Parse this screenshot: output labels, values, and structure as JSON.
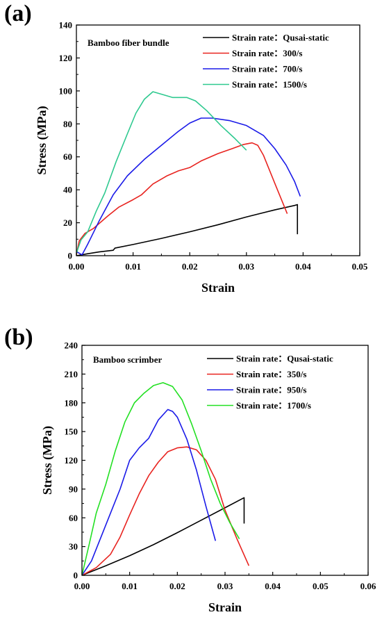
{
  "chart_data": [
    {
      "type": "line",
      "panel_label": "(a)",
      "annotation": "Bamboo fiber bundle",
      "xlabel": "Strain",
      "ylabel": "Stress (MPa)",
      "xlim": [
        0,
        0.05
      ],
      "ylim": [
        0,
        140
      ],
      "xticks": [
        "0.00",
        "0.01",
        "0.02",
        "0.03",
        "0.04",
        "0.05"
      ],
      "xtick_values": [
        0,
        0.01,
        0.02,
        0.03,
        0.04,
        0.05
      ],
      "yticks": [
        "0",
        "20",
        "40",
        "60",
        "80",
        "100",
        "120",
        "140"
      ],
      "ytick_values": [
        0,
        20,
        40,
        60,
        80,
        100,
        120,
        140
      ],
      "legend_position": "top-right",
      "series": [
        {
          "name": "Strain rate：Qusai-static",
          "color": "#000000",
          "points": [
            [
              0,
              0
            ],
            [
              0.002,
              1.2
            ],
            [
              0.004,
              2.3
            ],
            [
              0.0065,
              3.3
            ],
            [
              0.0068,
              4.6
            ],
            [
              0.01,
              6.8
            ],
            [
              0.015,
              10.5
            ],
            [
              0.02,
              14.5
            ],
            [
              0.025,
              18.8
            ],
            [
              0.03,
              23.5
            ],
            [
              0.035,
              27.8
            ],
            [
              0.0385,
              30.5
            ],
            [
              0.039,
              31
            ],
            [
              0.039,
              13
            ]
          ]
        },
        {
          "name": "Strain rate：300/s",
          "color": "#e8231f",
          "points": [
            [
              0,
              0.5
            ],
            [
              0.0005,
              9
            ],
            [
              0.0015,
              13.5
            ],
            [
              0.003,
              16.5
            ],
            [
              0.0055,
              24
            ],
            [
              0.0075,
              29.5
            ],
            [
              0.01,
              34
            ],
            [
              0.0115,
              37
            ],
            [
              0.0135,
              43.5
            ],
            [
              0.016,
              48.5
            ],
            [
              0.018,
              51.5
            ],
            [
              0.02,
              53.5
            ],
            [
              0.022,
              57.5
            ],
            [
              0.025,
              62
            ],
            [
              0.0275,
              65
            ],
            [
              0.0295,
              67.5
            ],
            [
              0.031,
              68.5
            ],
            [
              0.032,
              67
            ],
            [
              0.033,
              61
            ],
            [
              0.035,
              44
            ],
            [
              0.0372,
              25.5
            ]
          ]
        },
        {
          "name": "Strain rate：700/s",
          "color": "#1a1ae8",
          "points": [
            [
              0,
              2.5
            ],
            [
              0.001,
              0.5
            ],
            [
              0.002,
              7
            ],
            [
              0.004,
              21
            ],
            [
              0.0065,
              37
            ],
            [
              0.009,
              48.5
            ],
            [
              0.012,
              58.5
            ],
            [
              0.015,
              67
            ],
            [
              0.018,
              75.5
            ],
            [
              0.02,
              80.5
            ],
            [
              0.022,
              83.5
            ],
            [
              0.024,
              83.5
            ],
            [
              0.027,
              82
            ],
            [
              0.03,
              79
            ],
            [
              0.033,
              73
            ],
            [
              0.035,
              65
            ],
            [
              0.037,
              55
            ],
            [
              0.0385,
              45
            ],
            [
              0.0395,
              36
            ]
          ]
        },
        {
          "name": "Strain rate：1500/s",
          "color": "#2ec98f",
          "points": [
            [
              0,
              1.5
            ],
            [
              0.0008,
              9.5
            ],
            [
              0.002,
              14.5
            ],
            [
              0.0035,
              27
            ],
            [
              0.005,
              38
            ],
            [
              0.007,
              57
            ],
            [
              0.009,
              74
            ],
            [
              0.0105,
              86.5
            ],
            [
              0.012,
              95
            ],
            [
              0.0135,
              99.5
            ],
            [
              0.0155,
              97.5
            ],
            [
              0.017,
              96
            ],
            [
              0.0195,
              96
            ],
            [
              0.021,
              94
            ],
            [
              0.023,
              88
            ],
            [
              0.0255,
              79
            ],
            [
              0.028,
              71
            ],
            [
              0.03,
              64
            ]
          ]
        }
      ]
    },
    {
      "type": "line",
      "panel_label": "(b)",
      "annotation": "Bamboo scrimber",
      "xlabel": "Strain",
      "ylabel": "Stress (MPa)",
      "xlim": [
        0,
        0.06
      ],
      "ylim": [
        0,
        240
      ],
      "xticks": [
        "0.00",
        "0.01",
        "0.02",
        "0.03",
        "0.04",
        "0.05",
        "0.06"
      ],
      "xtick_values": [
        0,
        0.01,
        0.02,
        0.03,
        0.04,
        0.05,
        0.06
      ],
      "yticks": [
        "0",
        "30",
        "60",
        "90",
        "120",
        "150",
        "180",
        "210",
        "240"
      ],
      "ytick_values": [
        0,
        30,
        60,
        90,
        120,
        150,
        180,
        210,
        240
      ],
      "legend_position": "top-right",
      "series": [
        {
          "name": "Strain rate：Qusai-static",
          "color": "#000000",
          "points": [
            [
              0,
              0
            ],
            [
              0.002,
              4
            ],
            [
              0.005,
              10
            ],
            [
              0.01,
              20.5
            ],
            [
              0.015,
              32
            ],
            [
              0.02,
              44.5
            ],
            [
              0.025,
              57.5
            ],
            [
              0.03,
              70.5
            ],
            [
              0.034,
              81
            ],
            [
              0.034,
              54
            ]
          ]
        },
        {
          "name": "Strain rate：350/s",
          "color": "#e8231f",
          "points": [
            [
              0,
              0
            ],
            [
              0.003,
              8
            ],
            [
              0.006,
              22
            ],
            [
              0.008,
              40
            ],
            [
              0.01,
              63
            ],
            [
              0.012,
              85
            ],
            [
              0.014,
              104
            ],
            [
              0.016,
              118
            ],
            [
              0.018,
              129
            ],
            [
              0.02,
              133
            ],
            [
              0.022,
              134
            ],
            [
              0.024,
              131
            ],
            [
              0.026,
              120
            ],
            [
              0.028,
              100
            ],
            [
              0.03,
              68
            ],
            [
              0.0325,
              38
            ],
            [
              0.035,
              10
            ]
          ]
        },
        {
          "name": "Strain rate：950/s",
          "color": "#1a1ae8",
          "points": [
            [
              0,
              0
            ],
            [
              0.002,
              15
            ],
            [
              0.004,
              40
            ],
            [
              0.006,
              65
            ],
            [
              0.008,
              90
            ],
            [
              0.01,
              120
            ],
            [
              0.012,
              133
            ],
            [
              0.014,
              143
            ],
            [
              0.016,
              162
            ],
            [
              0.018,
              173
            ],
            [
              0.019,
              171
            ],
            [
              0.02,
              165
            ],
            [
              0.022,
              142
            ],
            [
              0.024,
              110
            ],
            [
              0.026,
              72
            ],
            [
              0.028,
              36
            ]
          ]
        },
        {
          "name": "Strain rate：1700/s",
          "color": "#22e022",
          "points": [
            [
              0,
              0
            ],
            [
              0.0015,
              32
            ],
            [
              0.003,
              65
            ],
            [
              0.005,
              95
            ],
            [
              0.007,
              130
            ],
            [
              0.009,
              160
            ],
            [
              0.011,
              180
            ],
            [
              0.013,
              190
            ],
            [
              0.015,
              198
            ],
            [
              0.017,
              201
            ],
            [
              0.019,
              197
            ],
            [
              0.021,
              183
            ],
            [
              0.023,
              158
            ],
            [
              0.025,
              130
            ],
            [
              0.027,
              100
            ],
            [
              0.029,
              75
            ],
            [
              0.031,
              55
            ],
            [
              0.033,
              38
            ]
          ]
        }
      ]
    }
  ]
}
